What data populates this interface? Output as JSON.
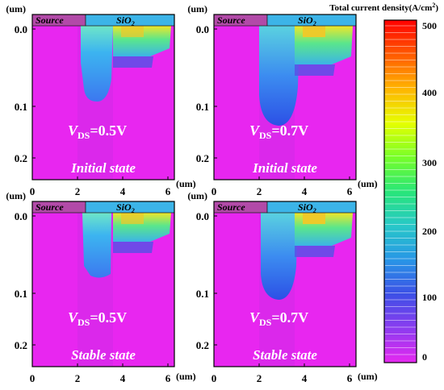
{
  "panels": [
    {
      "vds_value": "=0.5V",
      "state": "Initial state"
    },
    {
      "vds_value": "=0.7V",
      "state": "Initial state"
    },
    {
      "vds_value": "=0.5V",
      "state": "Stable state"
    },
    {
      "vds_value": "=0.7V",
      "state": "Stable state"
    }
  ],
  "labels": {
    "source": "Source",
    "sio2_main": "SiO",
    "sio2_sub": "2",
    "v_main": "V",
    "v_sub": "DS",
    "unit": "(um)",
    "y_unit": "(um)"
  },
  "axes": {
    "y_ticks": [
      "0.0",
      "0.1",
      "0.2"
    ],
    "x_ticks": [
      "0",
      "2",
      "4",
      "6"
    ]
  },
  "colorbar": {
    "title_main": "Total current density(A/cm",
    "title_sup": "2",
    "title_end": ")",
    "ticks": [
      "500",
      "400",
      "300",
      "200",
      "100",
      "0"
    ]
  },
  "colors": {
    "background": "#E826F0",
    "source_region": "#B24AA8",
    "oxide": "#3CB4E8"
  }
}
